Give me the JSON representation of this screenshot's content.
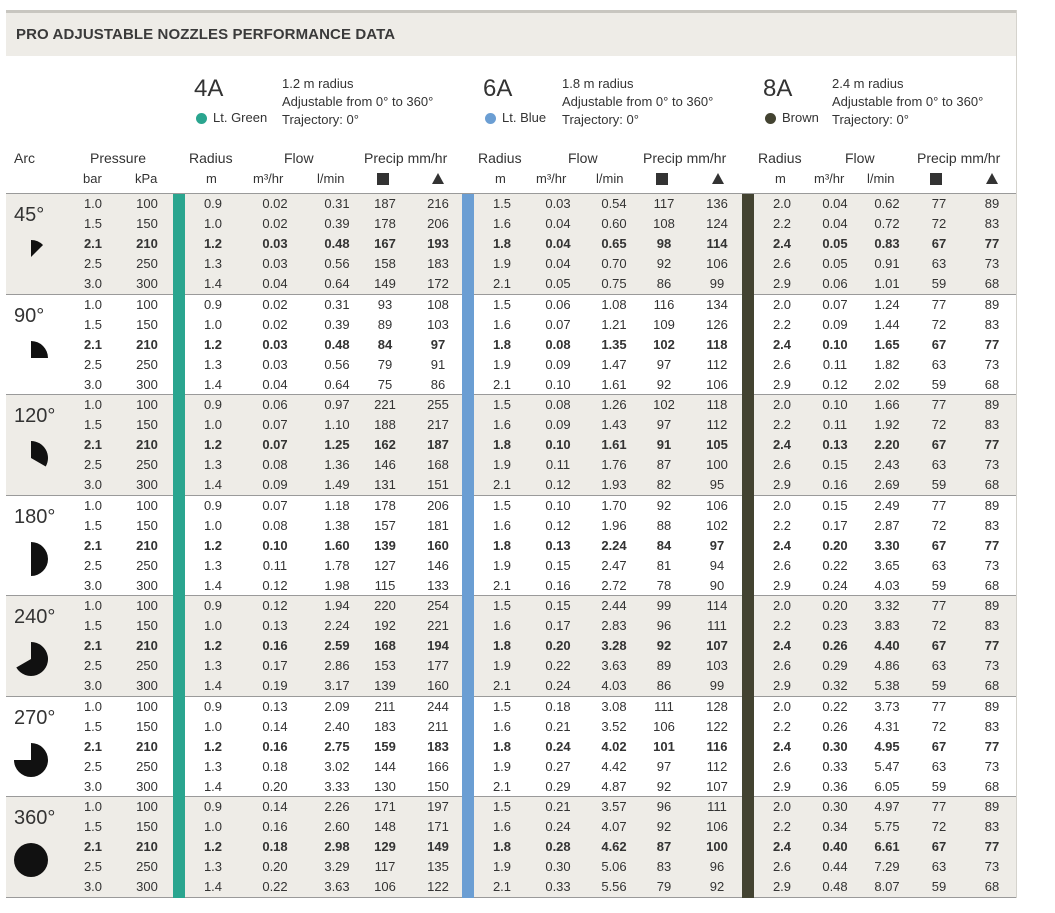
{
  "title": "PRO ADJUSTABLE NOZZLES PERFORMANCE DATA",
  "nozzles": [
    {
      "code": "4A",
      "color_name": "Lt. Green",
      "color_hex": "#2aa58f",
      "radius_text": "1.2 m radius",
      "adjust_text": "Adjustable from 0° to 360°",
      "trajectory_text": "Trajectory: 0°"
    },
    {
      "code": "6A",
      "color_name": "Lt. Blue",
      "color_hex": "#6b9ed3",
      "radius_text": "1.8 m radius",
      "adjust_text": "Adjustable from 0° to 360°",
      "trajectory_text": "Trajectory: 0°"
    },
    {
      "code": "8A",
      "color_name": "Brown",
      "color_hex": "#434331",
      "radius_text": "2.4 m radius",
      "adjust_text": "Adjustable from 0° to 360°",
      "trajectory_text": "Trajectory: 0°"
    }
  ],
  "headers": {
    "arc": "Arc",
    "pressure": "Pressure",
    "bar": "bar",
    "kpa": "kPa",
    "radius": "Radius",
    "m": "m",
    "flow": "Flow",
    "m3hr": "m³/hr",
    "lmin": "l/min",
    "precip": "Precip mm/hr",
    "precip_square_icon": "square-icon",
    "precip_triangle_icon": "triangle-icon"
  },
  "pressure_rows": [
    {
      "bar": "1.0",
      "kpa": "100"
    },
    {
      "bar": "1.5",
      "kpa": "150"
    },
    {
      "bar": "2.1",
      "kpa": "210"
    },
    {
      "bar": "2.5",
      "kpa": "250"
    },
    {
      "bar": "3.0",
      "kpa": "300"
    }
  ],
  "bold_row_index": 2,
  "groups": [
    {
      "arc": "45°",
      "arc_degrees": 45,
      "rows": [
        [
          "0.9",
          "0.02",
          "0.31",
          "187",
          "216",
          "1.5",
          "0.03",
          "0.54",
          "117",
          "136",
          "2.0",
          "0.04",
          "0.62",
          "77",
          "89"
        ],
        [
          "1.0",
          "0.02",
          "0.39",
          "178",
          "206",
          "1.6",
          "0.04",
          "0.60",
          "108",
          "124",
          "2.2",
          "0.04",
          "0.72",
          "72",
          "83"
        ],
        [
          "1.2",
          "0.03",
          "0.48",
          "167",
          "193",
          "1.8",
          "0.04",
          "0.65",
          "98",
          "114",
          "2.4",
          "0.05",
          "0.83",
          "67",
          "77"
        ],
        [
          "1.3",
          "0.03",
          "0.56",
          "158",
          "183",
          "1.9",
          "0.04",
          "0.70",
          "92",
          "106",
          "2.6",
          "0.05",
          "0.91",
          "63",
          "73"
        ],
        [
          "1.4",
          "0.04",
          "0.64",
          "149",
          "172",
          "2.1",
          "0.05",
          "0.75",
          "86",
          "99",
          "2.9",
          "0.06",
          "1.01",
          "59",
          "68"
        ]
      ]
    },
    {
      "arc": "90°",
      "arc_degrees": 90,
      "rows": [
        [
          "0.9",
          "0.02",
          "0.31",
          "93",
          "108",
          "1.5",
          "0.06",
          "1.08",
          "116",
          "134",
          "2.0",
          "0.07",
          "1.24",
          "77",
          "89"
        ],
        [
          "1.0",
          "0.02",
          "0.39",
          "89",
          "103",
          "1.6",
          "0.07",
          "1.21",
          "109",
          "126",
          "2.2",
          "0.09",
          "1.44",
          "72",
          "83"
        ],
        [
          "1.2",
          "0.03",
          "0.48",
          "84",
          "97",
          "1.8",
          "0.08",
          "1.35",
          "102",
          "118",
          "2.4",
          "0.10",
          "1.65",
          "67",
          "77"
        ],
        [
          "1.3",
          "0.03",
          "0.56",
          "79",
          "91",
          "1.9",
          "0.09",
          "1.47",
          "97",
          "112",
          "2.6",
          "0.11",
          "1.82",
          "63",
          "73"
        ],
        [
          "1.4",
          "0.04",
          "0.64",
          "75",
          "86",
          "2.1",
          "0.10",
          "1.61",
          "92",
          "106",
          "2.9",
          "0.12",
          "2.02",
          "59",
          "68"
        ]
      ]
    },
    {
      "arc": "120°",
      "arc_degrees": 120,
      "rows": [
        [
          "0.9",
          "0.06",
          "0.97",
          "221",
          "255",
          "1.5",
          "0.08",
          "1.26",
          "102",
          "118",
          "2.0",
          "0.10",
          "1.66",
          "77",
          "89"
        ],
        [
          "1.0",
          "0.07",
          "1.10",
          "188",
          "217",
          "1.6",
          "0.09",
          "1.43",
          "97",
          "112",
          "2.2",
          "0.11",
          "1.92",
          "72",
          "83"
        ],
        [
          "1.2",
          "0.07",
          "1.25",
          "162",
          "187",
          "1.8",
          "0.10",
          "1.61",
          "91",
          "105",
          "2.4",
          "0.13",
          "2.20",
          "67",
          "77"
        ],
        [
          "1.3",
          "0.08",
          "1.36",
          "146",
          "168",
          "1.9",
          "0.11",
          "1.76",
          "87",
          "100",
          "2.6",
          "0.15",
          "2.43",
          "63",
          "73"
        ],
        [
          "1.4",
          "0.09",
          "1.49",
          "131",
          "151",
          "2.1",
          "0.12",
          "1.93",
          "82",
          "95",
          "2.9",
          "0.16",
          "2.69",
          "59",
          "68"
        ]
      ]
    },
    {
      "arc": "180°",
      "arc_degrees": 180,
      "rows": [
        [
          "0.9",
          "0.07",
          "1.18",
          "178",
          "206",
          "1.5",
          "0.10",
          "1.70",
          "92",
          "106",
          "2.0",
          "0.15",
          "2.49",
          "77",
          "89"
        ],
        [
          "1.0",
          "0.08",
          "1.38",
          "157",
          "181",
          "1.6",
          "0.12",
          "1.96",
          "88",
          "102",
          "2.2",
          "0.17",
          "2.87",
          "72",
          "83"
        ],
        [
          "1.2",
          "0.10",
          "1.60",
          "139",
          "160",
          "1.8",
          "0.13",
          "2.24",
          "84",
          "97",
          "2.4",
          "0.20",
          "3.30",
          "67",
          "77"
        ],
        [
          "1.3",
          "0.11",
          "1.78",
          "127",
          "146",
          "1.9",
          "0.15",
          "2.47",
          "81",
          "94",
          "2.6",
          "0.22",
          "3.65",
          "63",
          "73"
        ],
        [
          "1.4",
          "0.12",
          "1.98",
          "115",
          "133",
          "2.1",
          "0.16",
          "2.72",
          "78",
          "90",
          "2.9",
          "0.24",
          "4.03",
          "59",
          "68"
        ]
      ]
    },
    {
      "arc": "240°",
      "arc_degrees": 240,
      "rows": [
        [
          "0.9",
          "0.12",
          "1.94",
          "220",
          "254",
          "1.5",
          "0.15",
          "2.44",
          "99",
          "114",
          "2.0",
          "0.20",
          "3.32",
          "77",
          "89"
        ],
        [
          "1.0",
          "0.13",
          "2.24",
          "192",
          "221",
          "1.6",
          "0.17",
          "2.83",
          "96",
          "111",
          "2.2",
          "0.23",
          "3.83",
          "72",
          "83"
        ],
        [
          "1.2",
          "0.16",
          "2.59",
          "168",
          "194",
          "1.8",
          "0.20",
          "3.28",
          "92",
          "107",
          "2.4",
          "0.26",
          "4.40",
          "67",
          "77"
        ],
        [
          "1.3",
          "0.17",
          "2.86",
          "153",
          "177",
          "1.9",
          "0.22",
          "3.63",
          "89",
          "103",
          "2.6",
          "0.29",
          "4.86",
          "63",
          "73"
        ],
        [
          "1.4",
          "0.19",
          "3.17",
          "139",
          "160",
          "2.1",
          "0.24",
          "4.03",
          "86",
          "99",
          "2.9",
          "0.32",
          "5.38",
          "59",
          "68"
        ]
      ]
    },
    {
      "arc": "270°",
      "arc_degrees": 270,
      "rows": [
        [
          "0.9",
          "0.13",
          "2.09",
          "211",
          "244",
          "1.5",
          "0.18",
          "3.08",
          "111",
          "128",
          "2.0",
          "0.22",
          "3.73",
          "77",
          "89"
        ],
        [
          "1.0",
          "0.14",
          "2.40",
          "183",
          "211",
          "1.6",
          "0.21",
          "3.52",
          "106",
          "122",
          "2.2",
          "0.26",
          "4.31",
          "72",
          "83"
        ],
        [
          "1.2",
          "0.16",
          "2.75",
          "159",
          "183",
          "1.8",
          "0.24",
          "4.02",
          "101",
          "116",
          "2.4",
          "0.30",
          "4.95",
          "67",
          "77"
        ],
        [
          "1.3",
          "0.18",
          "3.02",
          "144",
          "166",
          "1.9",
          "0.27",
          "4.42",
          "97",
          "112",
          "2.6",
          "0.33",
          "5.47",
          "63",
          "73"
        ],
        [
          "1.4",
          "0.20",
          "3.33",
          "130",
          "150",
          "2.1",
          "0.29",
          "4.87",
          "92",
          "107",
          "2.9",
          "0.36",
          "6.05",
          "59",
          "68"
        ]
      ]
    },
    {
      "arc": "360°",
      "arc_degrees": 360,
      "rows": [
        [
          "0.9",
          "0.14",
          "2.26",
          "171",
          "197",
          "1.5",
          "0.21",
          "3.57",
          "96",
          "111",
          "2.0",
          "0.30",
          "4.97",
          "77",
          "89"
        ],
        [
          "1.0",
          "0.16",
          "2.60",
          "148",
          "171",
          "1.6",
          "0.24",
          "4.07",
          "92",
          "106",
          "2.2",
          "0.34",
          "5.75",
          "72",
          "83"
        ],
        [
          "1.2",
          "0.18",
          "2.98",
          "129",
          "149",
          "1.8",
          "0.28",
          "4.62",
          "87",
          "100",
          "2.4",
          "0.40",
          "6.61",
          "67",
          "77"
        ],
        [
          "1.3",
          "0.20",
          "3.29",
          "117",
          "135",
          "1.9",
          "0.30",
          "5.06",
          "83",
          "96",
          "2.6",
          "0.44",
          "7.29",
          "63",
          "73"
        ],
        [
          "1.4",
          "0.22",
          "3.63",
          "106",
          "122",
          "2.1",
          "0.33",
          "5.56",
          "79",
          "92",
          "2.9",
          "0.48",
          "8.07",
          "59",
          "68"
        ]
      ]
    }
  ]
}
